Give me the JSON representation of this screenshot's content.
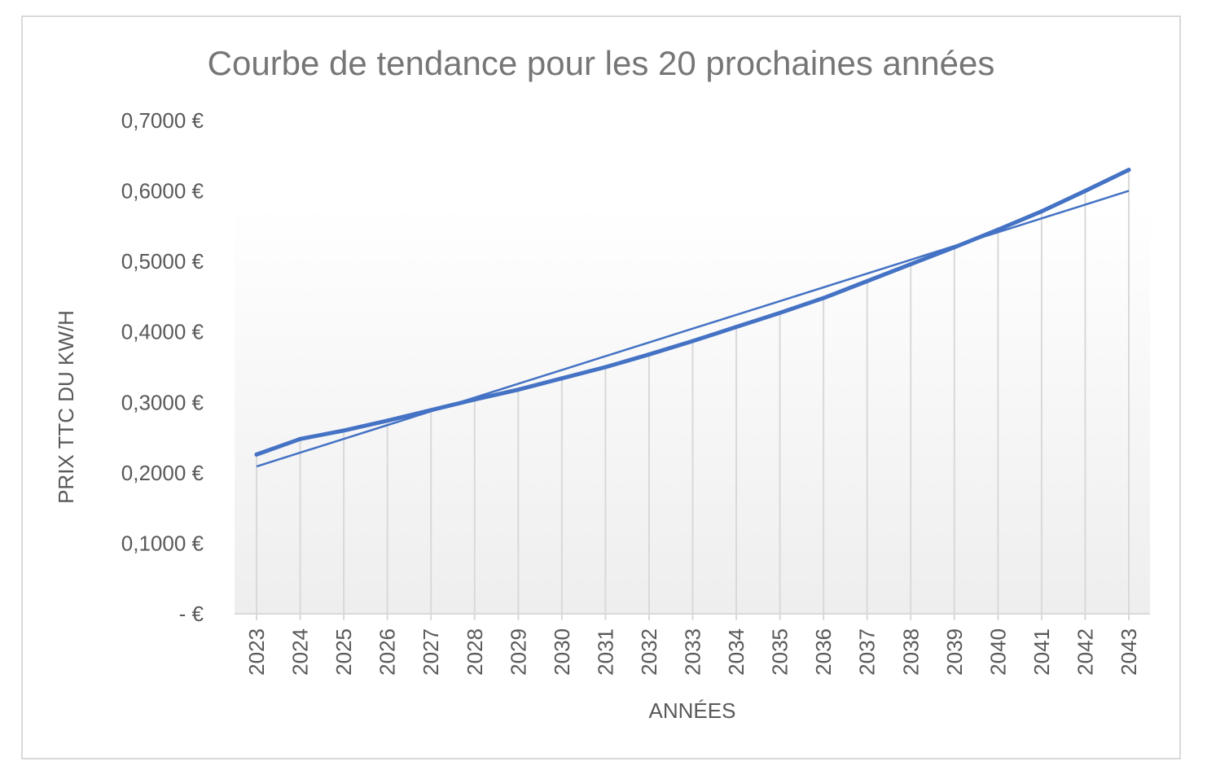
{
  "chart_data": {
    "type": "line",
    "title": "Courbe de tendance pour les 20 prochaines années",
    "xlabel": "ANNÉES",
    "ylabel": "PRIX TTC DU KW/H",
    "categories": [
      "2023",
      "2024",
      "2025",
      "2026",
      "2027",
      "2028",
      "2029",
      "2030",
      "2031",
      "2032",
      "2033",
      "2034",
      "2035",
      "2036",
      "2037",
      "2038",
      "2039",
      "2040",
      "2041",
      "2042",
      "2043"
    ],
    "y_ticks": [
      {
        "value": 0.7,
        "label": "0,7000 €"
      },
      {
        "value": 0.6,
        "label": "0,6000 €"
      },
      {
        "value": 0.5,
        "label": "0,5000 €"
      },
      {
        "value": 0.4,
        "label": "0,4000 €"
      },
      {
        "value": 0.3,
        "label": "0,3000 €"
      },
      {
        "value": 0.2,
        "label": "0,2000 €"
      },
      {
        "value": 0.1,
        "label": "0,1000 €"
      },
      {
        "value": 0,
        "label": "-   €"
      }
    ],
    "ylim": [
      0,
      0.7
    ],
    "series": [
      {
        "values": [
          0.226,
          0.248,
          0.26,
          0.274,
          0.289,
          0.304,
          0.318,
          0.334,
          0.35,
          0.368,
          0.387,
          0.407,
          0.427,
          0.448,
          0.472,
          0.496,
          0.52,
          0.545,
          0.571,
          0.6,
          0.63
        ]
      },
      {
        "trendline": "linear",
        "values": [
          0.209,
          0.2286,
          0.2481,
          0.2677,
          0.2873,
          0.3068,
          0.3264,
          0.3459,
          0.3655,
          0.385,
          0.4046,
          0.4241,
          0.4437,
          0.4632,
          0.4828,
          0.5023,
          0.5219,
          0.5414,
          0.561,
          0.5805,
          0.6001
        ]
      }
    ],
    "grid": "vertical",
    "legend": "none",
    "colors": {
      "series": "#4472c4",
      "grid": "#d9d9d9",
      "text": "#595959",
      "title": "#767676"
    }
  }
}
